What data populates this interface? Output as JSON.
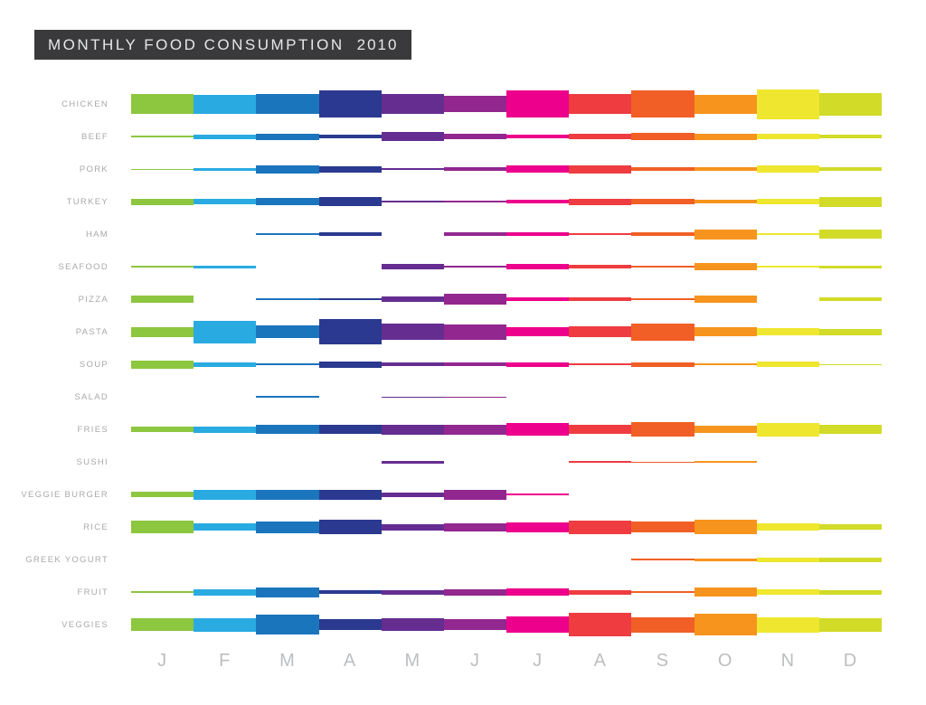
{
  "header": {
    "title": "MONTHLY FOOD CONSUMPTION",
    "year": "2010",
    "bar_color": "#3a3a3c",
    "text_color": "#e6e7e8"
  },
  "colors": {
    "background": "#ffffff",
    "row_label": "#a7a9ac",
    "month_label": "#bcbec0"
  },
  "chart_data": {
    "type": "heatmap",
    "title": "MONTHLY FOOD CONSUMPTION 2010",
    "encoding": "value per food per month drawn as horizontal band thickness in px",
    "legend_position": "none",
    "grid": false,
    "months": [
      "J",
      "F",
      "M",
      "A",
      "M",
      "J",
      "J",
      "A",
      "S",
      "O",
      "N",
      "D"
    ],
    "month_colors": [
      "#8dc63f",
      "#29abe2",
      "#1b75bc",
      "#2b3990",
      "#662d91",
      "#92278f",
      "#ec008c",
      "#ee3c40",
      "#f15f26",
      "#f7941e",
      "#efe72f",
      "#d1db28"
    ],
    "rows": [
      {
        "label": "CHICKEN",
        "values": [
          22,
          21,
          22,
          30,
          22,
          18,
          30,
          22,
          30,
          21,
          33,
          25
        ]
      },
      {
        "label": "BEEF",
        "values": [
          1.5,
          5,
          7,
          3.5,
          10,
          6,
          3.5,
          5.5,
          8,
          7,
          6.5,
          3.5
        ]
      },
      {
        "label": "PORK",
        "values": [
          1,
          3,
          9,
          7,
          1.5,
          4.5,
          8,
          9,
          4.5,
          3.5,
          8.5,
          4
        ]
      },
      {
        "label": "TURKEY",
        "values": [
          7,
          6,
          7.5,
          10,
          2.5,
          2.5,
          4.5,
          7,
          5.5,
          3.5,
          6,
          11
        ]
      },
      {
        "label": "HAM",
        "values": [
          0,
          0,
          1.5,
          4.5,
          0,
          3.5,
          3.5,
          1.5,
          3.5,
          11,
          1.5,
          10
        ]
      },
      {
        "label": "SEAFOOD",
        "values": [
          1.5,
          3,
          0,
          0,
          6.5,
          1.5,
          5.5,
          4,
          2,
          8,
          1.5,
          3
        ]
      },
      {
        "label": "PIZZA",
        "values": [
          8,
          0,
          1.5,
          2.5,
          6.5,
          12,
          3.5,
          4,
          2,
          7.5,
          0,
          4.5
        ]
      },
      {
        "label": "PASTA",
        "values": [
          11,
          25,
          14,
          28,
          18,
          17,
          10,
          12,
          19,
          10,
          8,
          7
        ]
      },
      {
        "label": "SOUP",
        "values": [
          9,
          5,
          2,
          7,
          4,
          4,
          5,
          1.5,
          5,
          2,
          6,
          1
        ]
      },
      {
        "label": "SALAD",
        "values": [
          0,
          0,
          1.5,
          0,
          1,
          1,
          0,
          0,
          0,
          0,
          0,
          0
        ]
      },
      {
        "label": "FRIES",
        "values": [
          6,
          7,
          10,
          10,
          11,
          11,
          14,
          10,
          16,
          8,
          15,
          10
        ]
      },
      {
        "label": "SUSHI",
        "values": [
          0,
          0,
          0,
          0,
          3,
          0,
          0,
          2,
          1,
          2,
          0,
          0
        ]
      },
      {
        "label": "VEGGIE BURGER",
        "values": [
          6,
          11,
          11,
          11,
          5,
          11,
          2,
          0,
          0,
          0,
          0,
          0
        ]
      },
      {
        "label": "RICE",
        "values": [
          14,
          8,
          13,
          16,
          7,
          9,
          11,
          15,
          12,
          16,
          8,
          6
        ]
      },
      {
        "label": "GREEK YOGURT",
        "values": [
          0,
          0,
          0,
          0,
          0,
          0,
          0,
          0,
          2,
          3,
          5,
          5
        ]
      },
      {
        "label": "FRUIT",
        "values": [
          1.5,
          7,
          11,
          4,
          5,
          7,
          8,
          5,
          1.5,
          10,
          6,
          5
        ]
      },
      {
        "label": "VEGGIES",
        "values": [
          14,
          15,
          22,
          12,
          14,
          12,
          18,
          26,
          17,
          24,
          17,
          15
        ]
      }
    ]
  }
}
